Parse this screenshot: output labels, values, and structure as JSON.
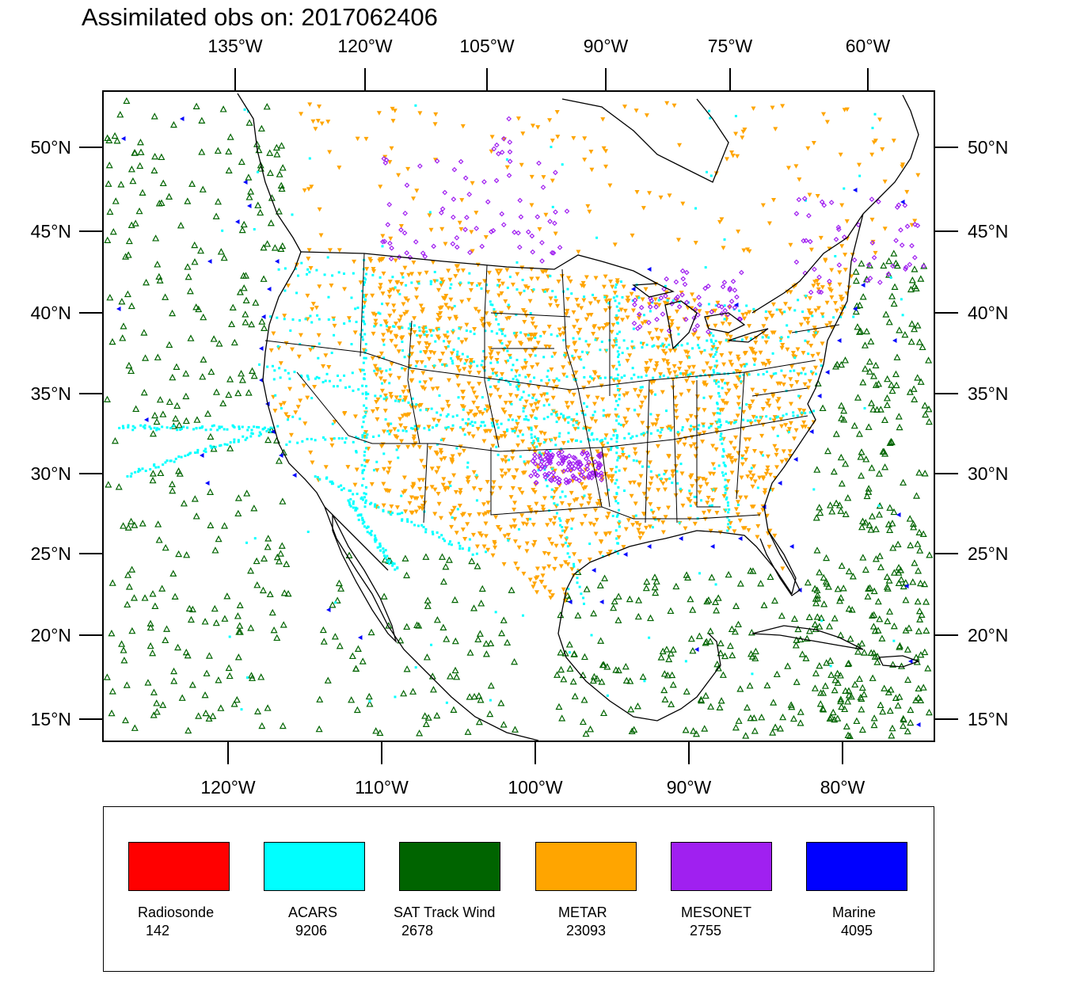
{
  "title": "Assimilated obs on: 2017062406",
  "top_axis": [
    "135°W",
    "120°W",
    "105°W",
    "90°W",
    "75°W",
    "60°W"
  ],
  "bottom_axis": [
    "120°W",
    "110°W",
    "100°W",
    "90°W",
    "80°W"
  ],
  "lat_axis": [
    "50°N",
    "45°N",
    "40°N",
    "35°N",
    "30°N",
    "25°N",
    "20°N",
    "15°N"
  ],
  "legend": [
    {
      "name": "Radiosonde",
      "count": "142",
      "color": "#ff0000"
    },
    {
      "name": "ACARS",
      "count": "9206",
      "color": "#00ffff"
    },
    {
      "name": "SAT Track Wind",
      "count": "2678",
      "color": "#006400"
    },
    {
      "name": "METAR",
      "count": "23093",
      "color": "#ffa500"
    },
    {
      "name": "MESONET",
      "count": "2755",
      "color": "#a020f0"
    },
    {
      "name": "Marine",
      "count": "4095",
      "color": "#0000ff"
    }
  ]
}
